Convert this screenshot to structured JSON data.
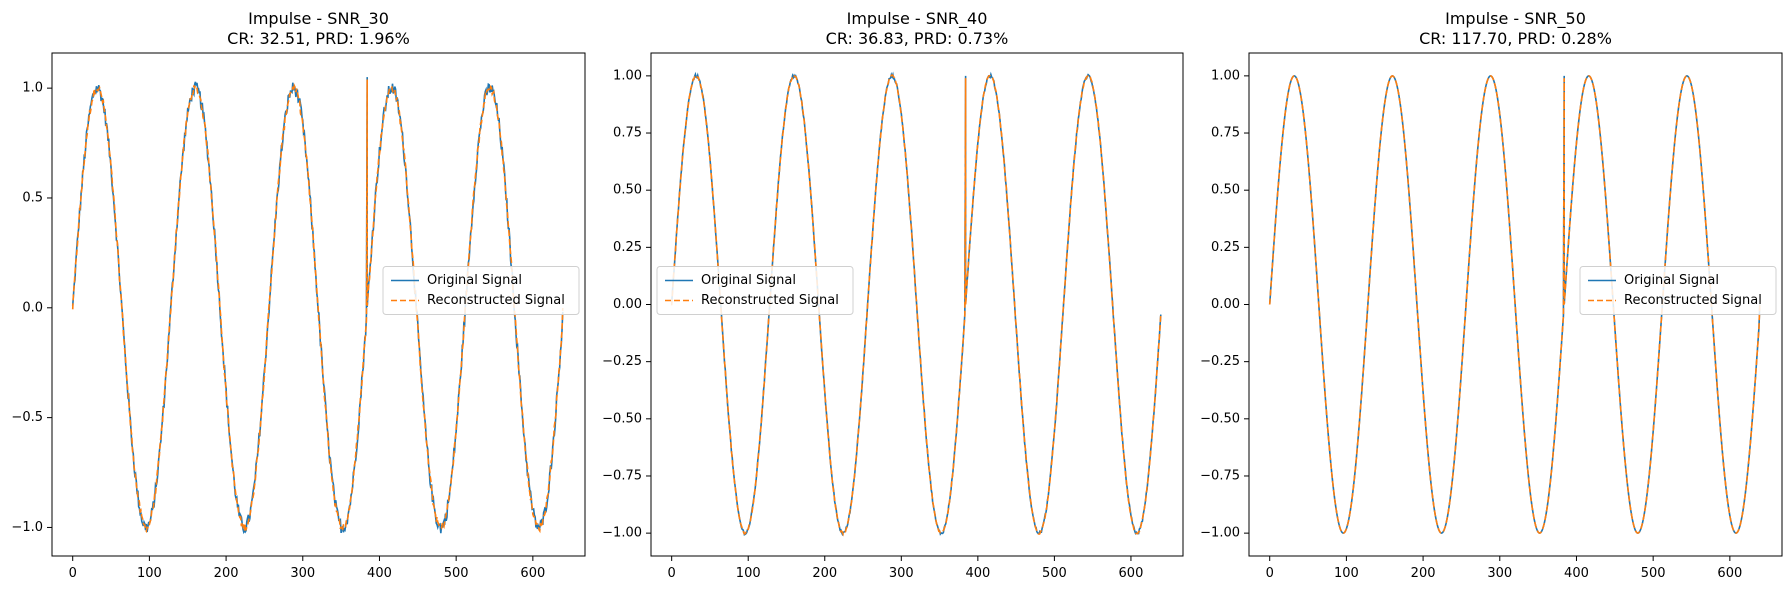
{
  "colors": {
    "original": "#1f77b4",
    "reconstructed": "#ff7f0e"
  },
  "chart_data": [
    {
      "type": "line",
      "title": "Impulse - SNR_30",
      "subtitle": "CR: 32.51, PRD: 1.96%",
      "xlim": [
        -27,
        668
      ],
      "ylim": [
        -1.13,
        1.16
      ],
      "xticks": [
        0,
        100,
        200,
        300,
        400,
        500,
        600
      ],
      "yticks": [
        -1.0,
        -0.5,
        0.0,
        0.5,
        1.0
      ],
      "ytick_labels": [
        "−1.0",
        "−0.5",
        "0.0",
        "0.5",
        "1.0"
      ],
      "signal": {
        "length": 640,
        "period": 128,
        "amplitude": 1.0
      },
      "impulse": {
        "x": 384,
        "peak": 1.05,
        "drop": 0.16
      },
      "noise": 0.03,
      "end_y": 0.0,
      "legend": {
        "location": "center right"
      },
      "series": [
        {
          "name": "Original Signal",
          "style": "solid"
        },
        {
          "name": "Reconstructed Signal",
          "style": "dashed"
        }
      ]
    },
    {
      "type": "line",
      "title": "Impulse - SNR_40",
      "subtitle": "CR: 36.83, PRD: 0.73%",
      "xlim": [
        -27,
        668
      ],
      "ylim": [
        -1.1,
        1.1
      ],
      "xticks": [
        0,
        100,
        200,
        300,
        400,
        500,
        600
      ],
      "yticks": [
        -1.0,
        -0.75,
        -0.5,
        -0.25,
        0.0,
        0.25,
        0.5,
        0.75,
        1.0
      ],
      "ytick_labels": [
        "−1.00",
        "−0.75",
        "−0.50",
        "−0.25",
        "0.00",
        "0.25",
        "0.50",
        "0.75",
        "1.00"
      ],
      "signal": {
        "length": 640,
        "period": 128,
        "amplitude": 1.0
      },
      "impulse": {
        "x": 384,
        "peak": 1.0,
        "drop": 0.22
      },
      "noise": 0.008,
      "end_y": -0.04,
      "legend": {
        "location": "center left"
      },
      "series": [
        {
          "name": "Original Signal",
          "style": "solid"
        },
        {
          "name": "Reconstructed Signal",
          "style": "dashed"
        }
      ]
    },
    {
      "type": "line",
      "title": "Impulse - SNR_50",
      "subtitle": "CR: 117.70, PRD: 0.28%",
      "xlim": [
        -27,
        668
      ],
      "ylim": [
        -1.1,
        1.1
      ],
      "xticks": [
        0,
        100,
        200,
        300,
        400,
        500,
        600
      ],
      "yticks": [
        -1.0,
        -0.75,
        -0.5,
        -0.25,
        0.0,
        0.25,
        0.5,
        0.75,
        1.0
      ],
      "ytick_labels": [
        "−1.00",
        "−0.75",
        "−0.50",
        "−0.25",
        "0.00",
        "0.25",
        "0.50",
        "0.75",
        "1.00"
      ],
      "signal": {
        "length": 640,
        "period": 128,
        "amplitude": 1.0
      },
      "impulse": {
        "x": 384,
        "peak": 1.0,
        "drop": 0.2
      },
      "noise": 0.0,
      "end_y": 0.0,
      "legend": {
        "location": "center right"
      },
      "series": [
        {
          "name": "Original Signal",
          "style": "solid"
        },
        {
          "name": "Reconstructed Signal",
          "style": "dashed"
        }
      ]
    }
  ]
}
